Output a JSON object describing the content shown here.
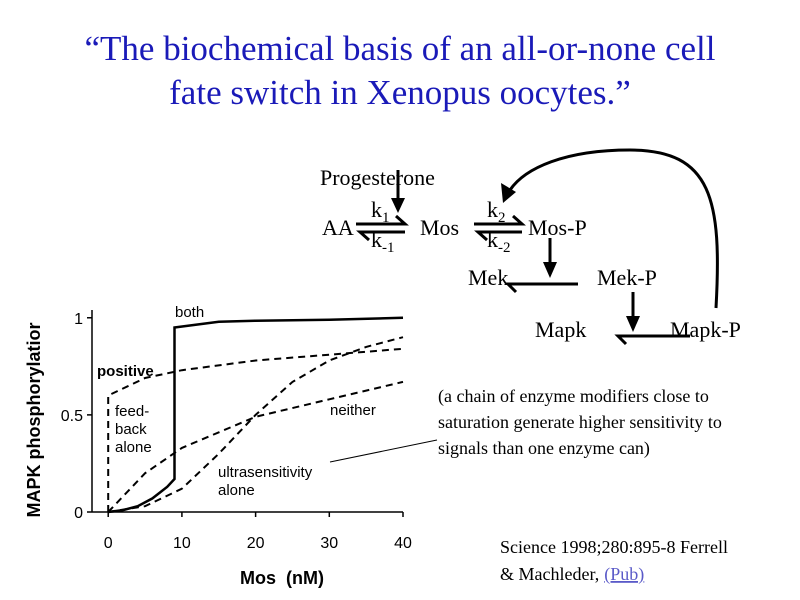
{
  "title": [
    "“The biochemical basis of an all-or-none cell",
    "fate switch in Xenopus oocytes.”"
  ],
  "diagram": {
    "signal": "Progesterone",
    "rates": [
      {
        "base": "k",
        "sub": "1"
      },
      {
        "base": "k",
        "sub": "-1"
      },
      {
        "base": "k",
        "sub": "2"
      },
      {
        "base": "k",
        "sub": "-2"
      }
    ],
    "species": [
      "AA",
      "Mos",
      "Mos-P",
      "Mek",
      "Mek-P",
      "Mapk",
      "Mapk-P"
    ]
  },
  "note": [
    "(a chain of enzyme modifiers close to",
    "saturation generate higher sensitivity to",
    "signals than one enzyme can)"
  ],
  "citation": {
    "lines": [
      "Science 1998;280:895-8 Ferrell",
      "& Machleder,"
    ],
    "link": "(Pub)"
  },
  "chart_data": {
    "type": "line",
    "x_label": "Mos  (nM)",
    "y_label": "MAPK phosphorylatior",
    "xlim": [
      -2.2,
      40
    ],
    "ylim": [
      0,
      1.04
    ],
    "xticks": [
      0,
      10,
      20,
      30,
      40
    ],
    "yticks": [
      0,
      0.5,
      1
    ],
    "annotations": [
      "both",
      "positive",
      "feed-",
      "back",
      "alone",
      "neither",
      "ultrasensitivity",
      "alone"
    ],
    "series": [
      {
        "color": "#000000",
        "style": "solid",
        "x": [
          0,
          2,
          4,
          6,
          8,
          9,
          9,
          15,
          20,
          30,
          40
        ],
        "values": [
          0,
          0.01,
          0.03,
          0.07,
          0.13,
          0.17,
          0.95,
          0.98,
          0.985,
          0.99,
          1.0
        ]
      },
      {
        "color": "#000000",
        "style": "dashed",
        "x": [
          0,
          0,
          5,
          10,
          20,
          30,
          40
        ],
        "values": [
          0,
          0.6,
          0.69,
          0.73,
          0.78,
          0.81,
          0.84
        ]
      },
      {
        "color": "#000000",
        "style": "dashed",
        "x": [
          0,
          5,
          10,
          20,
          30,
          40
        ],
        "values": [
          0,
          0.2,
          0.33,
          0.49,
          0.58,
          0.67
        ]
      },
      {
        "color": "#000000",
        "style": "dashed",
        "x": [
          0,
          5,
          10,
          15,
          20,
          25,
          30,
          35,
          40
        ],
        "values": [
          0,
          0.03,
          0.12,
          0.3,
          0.5,
          0.67,
          0.78,
          0.85,
          0.9
        ]
      }
    ]
  }
}
